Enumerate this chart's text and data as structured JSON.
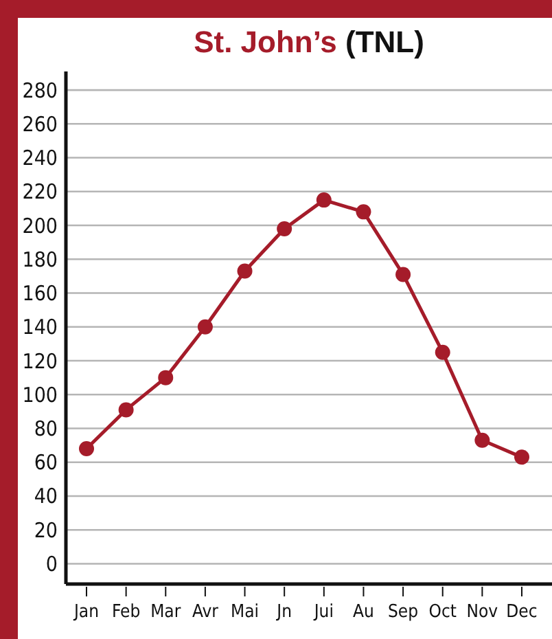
{
  "chart_data": {
    "type": "line",
    "title": "St. John’s (TNL)",
    "categories": [
      "Jan",
      "Feb",
      "Mar",
      "Avr",
      "Mai",
      "Jn",
      "Jui",
      "Au",
      "Sep",
      "Oct",
      "Nov",
      "Dec"
    ],
    "series": [
      {
        "color": "#a51c2a",
        "values": [
          68,
          91,
          110,
          140,
          173,
          198,
          215,
          208,
          171,
          125,
          73,
          63
        ]
      }
    ],
    "ylim": [
      -12,
      291
    ],
    "yticks": [
      0,
      20,
      40,
      60,
      80,
      100,
      120,
      140,
      160,
      180,
      200,
      220,
      240,
      260,
      280
    ],
    "grid": "y",
    "marker": "circle",
    "line_style": "solid"
  }
}
